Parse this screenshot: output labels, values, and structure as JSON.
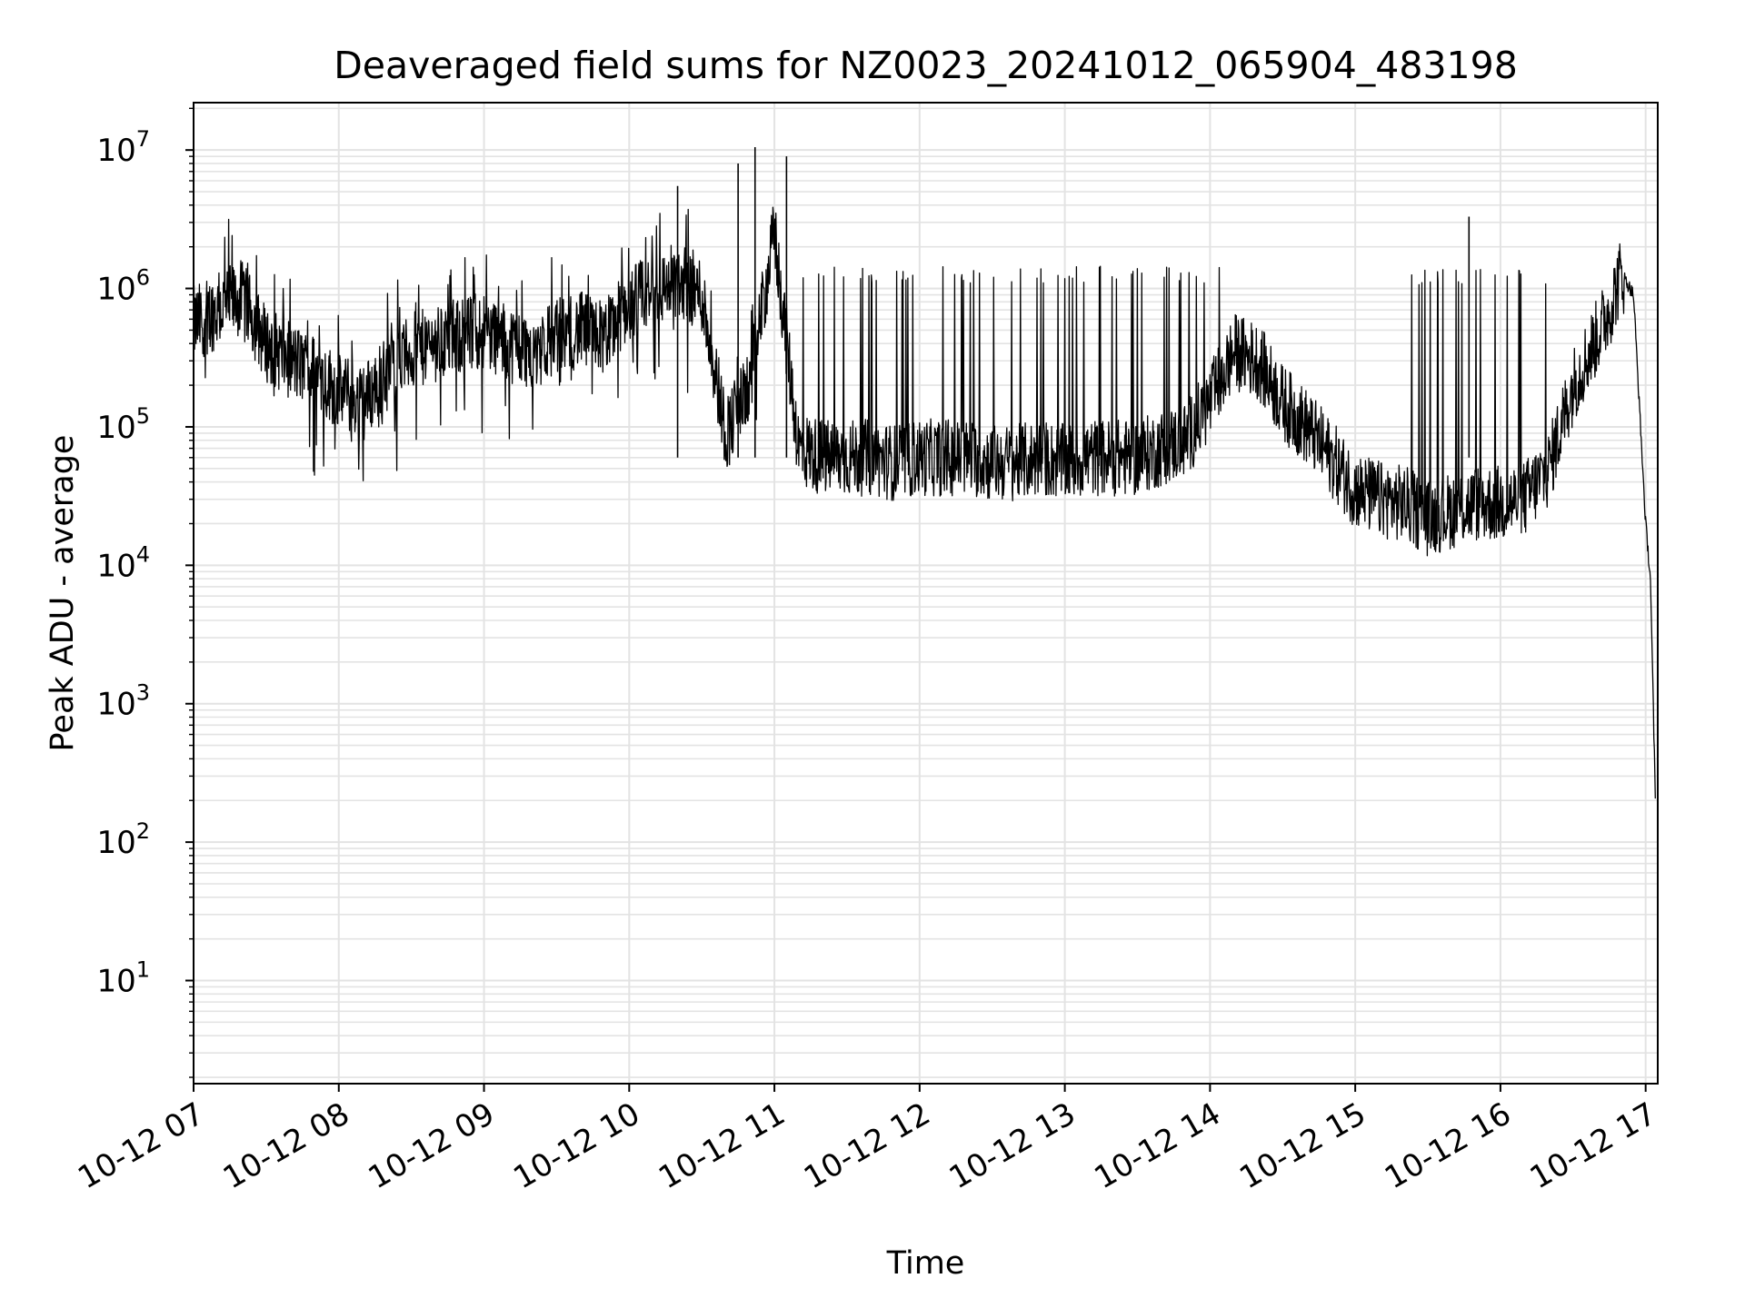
{
  "chart_data": {
    "type": "line",
    "title": "Deaveraged field sums for NZ0023_20241012_065904_483198",
    "xlabel": "Time",
    "ylabel": "Peak ADU - average",
    "yscale": "log",
    "ylim": [
      1.8,
      22000000
    ],
    "xlim": [
      "2024-10-12 07:00",
      "2024-10-12 17:05"
    ],
    "grid": true,
    "line_color": "#000000",
    "grid_color": "#e3e3e3",
    "x_tick_labels": [
      "10-12 07",
      "10-12 08",
      "10-12 09",
      "10-12 10",
      "10-12 11",
      "10-12 12",
      "10-12 13",
      "10-12 14",
      "10-12 15",
      "10-12 16",
      "10-12 17"
    ],
    "y_tick_labels": [
      {
        "base": "10",
        "exp": "1"
      },
      {
        "base": "10",
        "exp": "2"
      },
      {
        "base": "10",
        "exp": "3"
      },
      {
        "base": "10",
        "exp": "4"
      },
      {
        "base": "10",
        "exp": "5"
      },
      {
        "base": "10",
        "exp": "6"
      },
      {
        "base": "10",
        "exp": "7"
      }
    ],
    "series": [
      {
        "x": [
          "2024-10-12 07:00",
          "2024-10-12 07:10",
          "2024-10-12 07:20",
          "2024-10-12 07:30",
          "2024-10-12 07:40",
          "2024-10-12 07:50",
          "2024-10-12 08:00",
          "2024-10-12 08:10",
          "2024-10-12 08:20",
          "2024-10-12 08:30",
          "2024-10-12 08:40",
          "2024-10-12 08:50",
          "2024-10-12 09:00",
          "2024-10-12 09:10",
          "2024-10-12 09:20",
          "2024-10-12 09:30",
          "2024-10-12 09:40",
          "2024-10-12 09:50",
          "2024-10-12 10:00",
          "2024-10-12 10:10",
          "2024-10-12 10:20",
          "2024-10-12 10:30",
          "2024-10-12 10:40",
          "2024-10-12 10:50",
          "2024-10-12 11:00",
          "2024-10-12 11:10",
          "2024-10-12 11:20",
          "2024-10-12 11:30",
          "2024-10-12 11:40",
          "2024-10-12 11:50",
          "2024-10-12 12:00",
          "2024-10-12 12:10",
          "2024-10-12 12:20",
          "2024-10-12 12:30",
          "2024-10-12 12:40",
          "2024-10-12 12:50",
          "2024-10-12 13:00",
          "2024-10-12 13:10",
          "2024-10-12 13:20",
          "2024-10-12 13:30",
          "2024-10-12 13:40",
          "2024-10-12 13:50",
          "2024-10-12 14:00",
          "2024-10-12 14:10",
          "2024-10-12 14:20",
          "2024-10-12 14:30",
          "2024-10-12 14:40",
          "2024-10-12 14:50",
          "2024-10-12 15:00",
          "2024-10-12 15:10",
          "2024-10-12 15:20",
          "2024-10-12 15:30",
          "2024-10-12 15:40",
          "2024-10-12 15:50",
          "2024-10-12 16:00",
          "2024-10-12 16:10",
          "2024-10-12 16:20",
          "2024-10-12 16:30",
          "2024-10-12 16:40",
          "2024-10-12 16:45",
          "2024-10-12 16:50",
          "2024-10-12 16:55",
          "2024-10-12 17:00",
          "2024-10-12 17:02",
          "2024-10-12 17:04"
        ],
        "y": [
          550000,
          700000,
          850000,
          400000,
          300000,
          250000,
          180000,
          150000,
          250000,
          350000,
          400000,
          450000,
          500000,
          400000,
          350000,
          450000,
          500000,
          450000,
          800000,
          900000,
          1200000,
          900000,
          90000,
          200000,
          2500000,
          70000,
          60000,
          60000,
          60000,
          55000,
          60000,
          60000,
          60000,
          55000,
          55000,
          60000,
          55000,
          60000,
          60000,
          60000,
          70000,
          80000,
          150000,
          350000,
          300000,
          150000,
          100000,
          60000,
          35000,
          30000,
          28000,
          22000,
          25000,
          28000,
          28000,
          30000,
          50000,
          200000,
          450000,
          700000,
          1300000,
          900000,
          20000,
          8000,
          200
        ]
      }
    ],
    "spikes": [
      {
        "x": "2024-10-12 10:20",
        "y": 5500000
      },
      {
        "x": "2024-10-12 10:45",
        "y": 8000000
      },
      {
        "x": "2024-10-12 10:52",
        "y": 10500000
      },
      {
        "x": "2024-10-12 11:05",
        "y": 9000000
      },
      {
        "x": "2024-10-12 15:47",
        "y": 3300000
      }
    ]
  }
}
